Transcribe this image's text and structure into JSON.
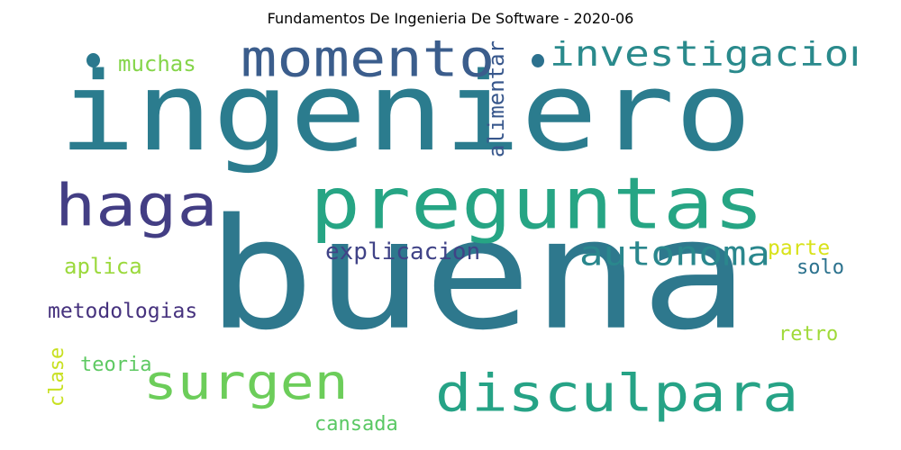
{
  "title": "Fundamentos De Ingenieria De Software - 2020-06",
  "words": [
    {
      "text": "ingeniero",
      "color": "#2b7c8e"
    },
    {
      "text": "buena",
      "color": "#2e788d"
    },
    {
      "text": "preguntas",
      "color": "#26a584"
    },
    {
      "text": "momento",
      "color": "#3b5d8c"
    },
    {
      "text": "investigacion",
      "color": "#2a8a8c"
    },
    {
      "text": "haga",
      "color": "#433e84"
    },
    {
      "text": "surgen",
      "color": "#6ccd5a"
    },
    {
      "text": "disculpara",
      "color": "#26a386"
    },
    {
      "text": "autonoma",
      "color": "#2a878d"
    },
    {
      "text": "explicacion",
      "color": "#404387"
    },
    {
      "text": "muchas",
      "color": "#85d54a"
    },
    {
      "text": "alimentar",
      "color": "#38578c"
    },
    {
      "text": "aplica",
      "color": "#9bd93c"
    },
    {
      "text": "metodologias",
      "color": "#46327e"
    },
    {
      "text": "parte",
      "color": "#d8e219"
    },
    {
      "text": "solo",
      "color": "#2c728e"
    },
    {
      "text": "retro",
      "color": "#a0da39"
    },
    {
      "text": "teoria",
      "color": "#5ec962"
    },
    {
      "text": "clase",
      "color": "#c8e020"
    },
    {
      "text": "cansada",
      "color": "#5ac864"
    }
  ],
  "dot_colors": [
    "#2a788e",
    "#2c718e"
  ]
}
